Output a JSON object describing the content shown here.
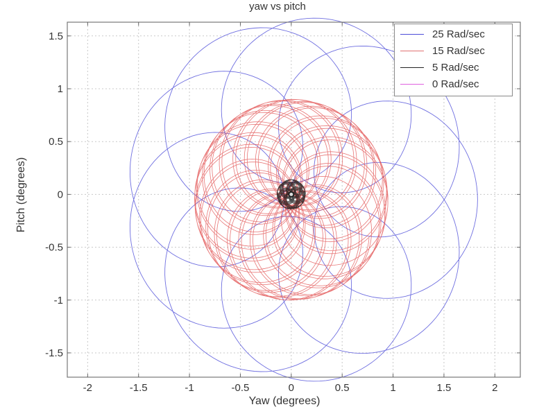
{
  "chart_data": {
    "type": "line",
    "title": "yaw vs pitch",
    "xlabel": "Yaw (degrees)",
    "ylabel": "Pitch (degrees)",
    "xlim": [
      -2.2,
      2.25
    ],
    "ylim": [
      -1.73,
      1.63
    ],
    "xticks": [
      -2,
      -1.5,
      -1,
      -0.5,
      0,
      0.5,
      1,
      1.5,
      2
    ],
    "yticks": [
      -1.5,
      -1,
      -0.5,
      0,
      0.5,
      1,
      1.5
    ],
    "xtick_labels": [
      "-2",
      "-1.5",
      "-1",
      "-0.5",
      "0",
      "0.5",
      "1",
      "1.5",
      "2"
    ],
    "ytick_labels": [
      "-1.5",
      "-1",
      "-0.5",
      "0",
      "0.5",
      "1",
      "1.5"
    ],
    "grid": true,
    "legend_position": "upper right",
    "series": [
      {
        "name": "25 Rad/sec",
        "color": "#4a4ad8",
        "description": "Rosette of large loops (epicyclic coning trace)",
        "x_range": [
          -1.6,
          1.8
        ],
        "y_range": [
          -1.75,
          1.6
        ],
        "params": {
          "R1": 0.78,
          "R2": 0.95,
          "w1": 1.0,
          "w2": 0.1,
          "cx": 0.1,
          "cy": -0.05,
          "turns": 60,
          "decay": 0.0
        }
      },
      {
        "name": "15 Rad/sec",
        "color": "#e04848",
        "description": "Rosette of medium loops",
        "x_range": [
          -0.95,
          0.95
        ],
        "y_range": [
          -1.05,
          0.95
        ],
        "params": {
          "R1": 0.5,
          "R2": 0.45,
          "w1": 1.0,
          "w2": 0.13,
          "cx": 0.0,
          "cy": -0.05,
          "turns": 45,
          "decay": 0.0
        }
      },
      {
        "name": "5 Rad/sec",
        "color": "#111111",
        "description": "Small tight loops near origin",
        "x_range": [
          -0.15,
          0.15
        ],
        "y_range": [
          -0.15,
          0.15
        ],
        "params": {
          "R1": 0.08,
          "R2": 0.06,
          "w1": 1.0,
          "w2": 0.17,
          "cx": 0.0,
          "cy": 0.0,
          "turns": 30,
          "decay": 0.0
        }
      },
      {
        "name": "0 Rad/sec",
        "color": "#e060e0",
        "description": "Essentially a point at origin",
        "x_range": [
          -0.02,
          0.02
        ],
        "y_range": [
          -0.02,
          0.02
        ],
        "params": {
          "R1": 0.015,
          "R2": 0.0,
          "w1": 1.0,
          "w2": 0.0,
          "cx": 0.0,
          "cy": 0.0,
          "turns": 2,
          "decay": 0.0
        }
      }
    ]
  },
  "legend": {
    "items": [
      {
        "label": "25 Rad/sec",
        "color": "#4a4ad8"
      },
      {
        "label": "15 Rad/sec",
        "color": "#e04848"
      },
      {
        "label": "5 Rad/sec",
        "color": "#111111"
      },
      {
        "label": "0 Rad/sec",
        "color": "#e060e0"
      }
    ]
  }
}
